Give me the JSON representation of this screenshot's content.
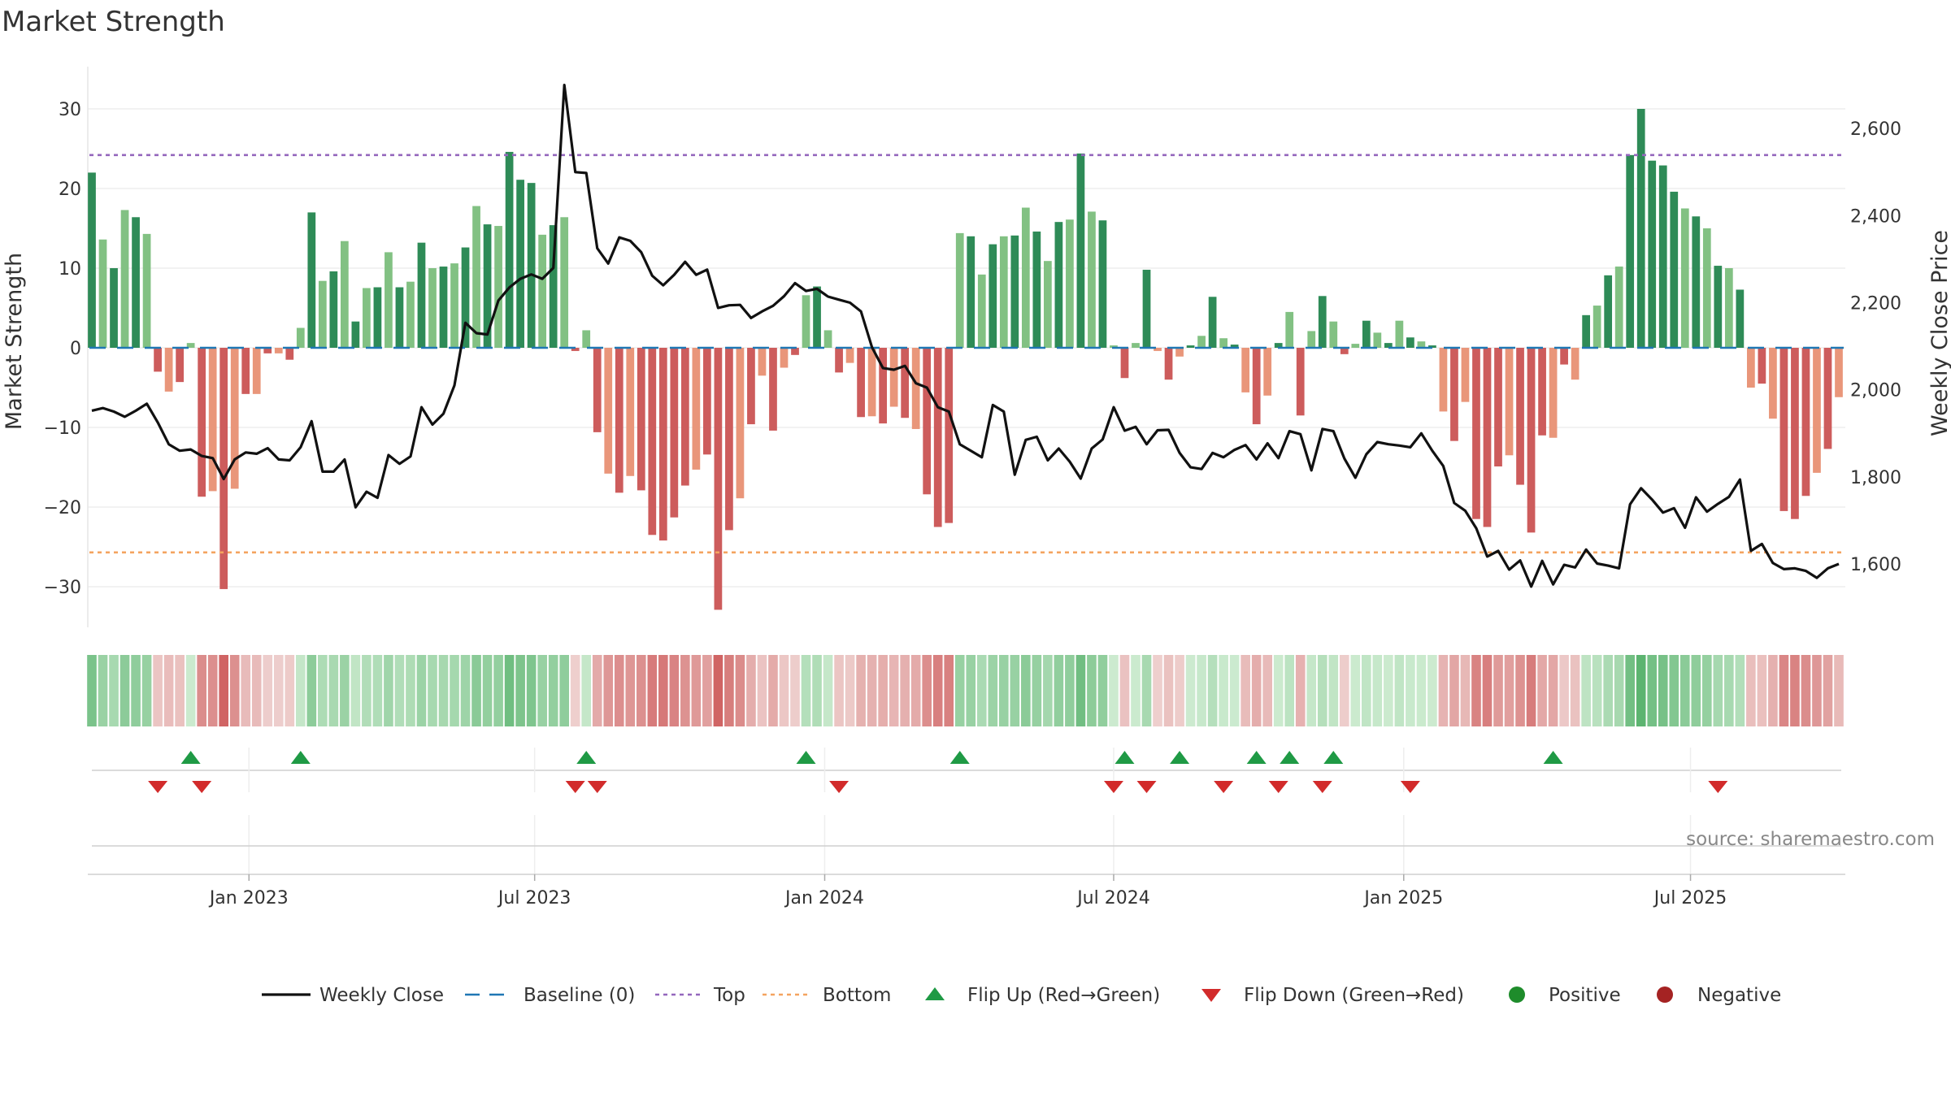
{
  "chart_data": {
    "type": "bar+line",
    "title": "Market Strength",
    "y_left": {
      "label": "Market Strength",
      "ticks": [
        30,
        20,
        10,
        0,
        -10,
        -20,
        -30
      ],
      "lim": [
        -35.5,
        35.5
      ]
    },
    "y_right": {
      "label": "Weekly Close Price",
      "ticks": [
        1600,
        1800,
        2000,
        2200,
        2400,
        2600
      ],
      "tick_labels": [
        "1,600",
        "1,800",
        "2,000",
        "2,200",
        "2,400",
        "2,600"
      ],
      "lim": [
        1460,
        2720
      ]
    },
    "x_ticks": [
      "Jan 2023",
      "Jul 2023",
      "Jan 2024",
      "Jul 2024",
      "Jan 2025",
      "Jul 2025"
    ],
    "x_tick_weeks": [
      14.3,
      40.3,
      66.7,
      93,
      119.4,
      145.5
    ],
    "top_line": 24.2,
    "bottom_line": -25.7,
    "bars": [
      22,
      13.6,
      10,
      17.3,
      16.4,
      14.3,
      -3,
      -5.5,
      -4.3,
      0.6,
      -18.7,
      -18,
      -30.3,
      -17.7,
      -5.8,
      -5.8,
      -0.7,
      -0.7,
      -1.5,
      2.5,
      17,
      8.4,
      9.6,
      13.4,
      3.3,
      7.5,
      7.6,
      12,
      7.6,
      8.3,
      13.2,
      10,
      10.2,
      10.6,
      12.6,
      17.8,
      15.5,
      15.3,
      24.6,
      21.1,
      20.7,
      14.2,
      15.4,
      16.4,
      -0.4,
      2.2,
      -10.6,
      -15.8,
      -18.2,
      -16.1,
      -17.9,
      -23.5,
      -24.2,
      -21.3,
      -17.3,
      -15.3,
      -13.4,
      -32.9,
      -22.9,
      -18.9,
      -9.6,
      -3.5,
      -10.4,
      -2.5,
      -0.9,
      6.6,
      7.7,
      2.2,
      -3.1,
      -1.9,
      -8.7,
      -8.6,
      -9.5,
      -7.4,
      -8.8,
      -10.2,
      -18.4,
      -22.5,
      -22,
      14.4,
      14,
      9.2,
      13,
      14,
      14.1,
      17.6,
      14.6,
      10.9,
      15.8,
      16.1,
      24.4,
      17.1,
      16,
      0.3,
      -3.8,
      0.6,
      9.8,
      -0.4,
      -4,
      -1.1,
      0.3,
      1.5,
      6.4,
      1.2,
      0.4,
      -5.6,
      -9.6,
      -6,
      0.6,
      4.5,
      -8.5,
      2.1,
      6.5,
      3.3,
      -0.8,
      0.5,
      3.4,
      1.9,
      0.6,
      3.4,
      1.3,
      0.8,
      0.3,
      -8,
      -11.7,
      -6.8,
      -21.5,
      -22.5,
      -14.9,
      -13.5,
      -17.2,
      -23.2,
      -11,
      -11.3,
      -2.1,
      -4,
      4.1,
      5.3,
      9.1,
      10.2,
      24.2,
      30,
      23.5,
      22.9,
      19.6,
      17.5,
      16.5,
      15,
      10.3,
      10,
      7.3,
      -5,
      -4.5,
      -8.9,
      -20.5,
      -21.5,
      -18.6,
      -15.7,
      -12.7,
      -6.2
    ],
    "close": [
      1952,
      1958,
      1950,
      1938,
      1952,
      1968,
      1925,
      1875,
      1860,
      1863,
      1848,
      1843,
      1795,
      1840,
      1856,
      1853,
      1866,
      1840,
      1838,
      1868,
      1928,
      1812,
      1812,
      1840,
      1730,
      1766,
      1752,
      1850,
      1830,
      1847,
      1960,
      1920,
      1945,
      2010,
      2154,
      2130,
      2127,
      2205,
      2235,
      2255,
      2265,
      2255,
      2280,
      2700,
      2500,
      2498,
      2325,
      2290,
      2350,
      2342,
      2316,
      2262,
      2240,
      2264,
      2294,
      2264,
      2276,
      2188,
      2194,
      2195,
      2165,
      2180,
      2193,
      2215,
      2245,
      2227,
      2232,
      2214,
      2207,
      2200,
      2180,
      2098,
      2050,
      2046,
      2055,
      2015,
      2005,
      1960,
      1950,
      1875,
      1860,
      1845,
      1965,
      1950,
      1805,
      1885,
      1892,
      1838,
      1865,
      1835,
      1796,
      1865,
      1886,
      1960,
      1906,
      1915,
      1875,
      1907,
      1908,
      1855,
      1822,
      1818,
      1855,
      1845,
      1862,
      1873,
      1840,
      1877,
      1843,
      1905,
      1898,
      1815,
      1910,
      1905,
      1842,
      1798,
      1852,
      1880,
      1875,
      1872,
      1868,
      1900,
      1860,
      1825,
      1740,
      1722,
      1682,
      1617,
      1630,
      1587,
      1608,
      1548,
      1607,
      1553,
      1598,
      1592,
      1633,
      1601,
      1596,
      1590,
      1737,
      1774,
      1748,
      1718,
      1728,
      1683,
      1753,
      1720,
      1738,
      1754,
      1794,
      1630,
      1646,
      1602,
      1588,
      1590,
      1584,
      1568,
      1590,
      1600
    ],
    "flip_up_weeks": [
      9,
      19,
      45,
      65,
      79,
      94,
      99,
      106,
      109,
      113,
      133
    ],
    "flip_down_weeks": [
      6,
      10,
      44,
      46,
      68,
      93,
      96,
      103,
      108,
      112,
      120,
      148
    ]
  },
  "colors": {
    "strong_green": "#2e8b57",
    "light_green": "#82c183",
    "strong_red": "#cd5c5c",
    "light_red": "#e9967a",
    "flip_up": "#1f9a45",
    "flip_down": "#d22b2b",
    "positive": "#1e8c2b",
    "negative": "#a52323",
    "top": "#9467bd",
    "bottom": "#f4a460",
    "baseline": "#1f77b4"
  },
  "legend": [
    {
      "label": "Weekly Close",
      "icon": "line-icon"
    },
    {
      "label": "Baseline (0)",
      "icon": "dashed-line-icon"
    },
    {
      "label": "Top",
      "icon": "dotted-line-icon"
    },
    {
      "label": "Bottom",
      "icon": "dotted-line-icon"
    },
    {
      "label": "Flip Up (Red→Green)",
      "icon": "triangle-up-icon"
    },
    {
      "label": "Flip Down (Green→Red)",
      "icon": "triangle-down-icon"
    },
    {
      "label": "Positive",
      "icon": "dot-icon"
    },
    {
      "label": "Negative",
      "icon": "dot-icon"
    }
  ],
  "source": "source: sharemaestro.com"
}
